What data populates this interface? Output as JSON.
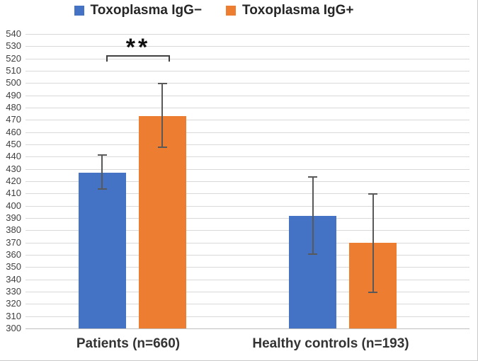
{
  "legend": {
    "position": "top"
  },
  "chart_data": {
    "type": "bar",
    "title": "",
    "xlabel": "",
    "ylabel": "",
    "categories": [
      "Patients (n=660)",
      "Healthy controls (n=193)"
    ],
    "category_keys": [
      "patients",
      "healthy-controls"
    ],
    "series": [
      {
        "name": "Toxoplasma IgG−",
        "key": "toxoplasma-igg-negative",
        "color": "#4472C4",
        "values": [
          427,
          392
        ],
        "error_low": [
          413,
          360
        ],
        "error_high": [
          442,
          424
        ]
      },
      {
        "name": "Toxoplasma IgG+",
        "key": "toxoplasma-igg-positive",
        "color": "#ED7D31",
        "values": [
          473,
          370
        ],
        "error_low": [
          447,
          329
        ],
        "error_high": [
          500,
          410
        ]
      }
    ],
    "ylim": [
      300,
      540
    ],
    "ytick_step": 10,
    "grid": true,
    "legend_position": "top",
    "annotation": {
      "text": "**",
      "type": "significance-bracket",
      "between": [
        "Patients: Toxoplasma IgG−",
        "Patients: Toxoplasma IgG+"
      ]
    }
  },
  "colors": {
    "grid": "#D9D9D9",
    "baseline": "#BFBFBF",
    "error_bar": "#595959",
    "bracket": "#404040",
    "axis_text": "#404040",
    "label_text": "#262626"
  }
}
